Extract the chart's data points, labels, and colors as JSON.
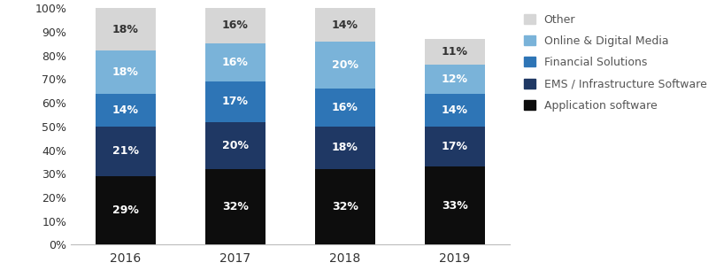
{
  "years": [
    "2016",
    "2017",
    "2018",
    "2019"
  ],
  "segments": {
    "Application software": [
      29,
      32,
      32,
      33
    ],
    "EMS / Infrastructure Software": [
      21,
      20,
      18,
      17
    ],
    "Financial Solutions": [
      14,
      17,
      16,
      14
    ],
    "Online & Digital Media": [
      18,
      16,
      20,
      12
    ],
    "Other": [
      18,
      16,
      14,
      11
    ]
  },
  "colors": {
    "Application software": "#0d0d0d",
    "EMS / Infrastructure Software": "#1f3864",
    "Financial Solutions": "#2e75b6",
    "Online & Digital Media": "#7ab3d9",
    "Other": "#d6d6d6"
  },
  "seg_order": [
    "Application software",
    "EMS / Infrastructure Software",
    "Financial Solutions",
    "Online & Digital Media",
    "Other"
  ],
  "legend_labels": [
    "Other",
    "Online & Digital Media",
    "Financial Solutions",
    "EMS / Infrastructure Software",
    "Application software"
  ],
  "ytick_labels": [
    "0%",
    "10%",
    "20%",
    "30%",
    "40%",
    "50%",
    "60%",
    "70%",
    "80%",
    "90%",
    "100%"
  ],
  "figsize": [
    8.0,
    3.14
  ],
  "dpi": 100,
  "bar_width": 0.55
}
